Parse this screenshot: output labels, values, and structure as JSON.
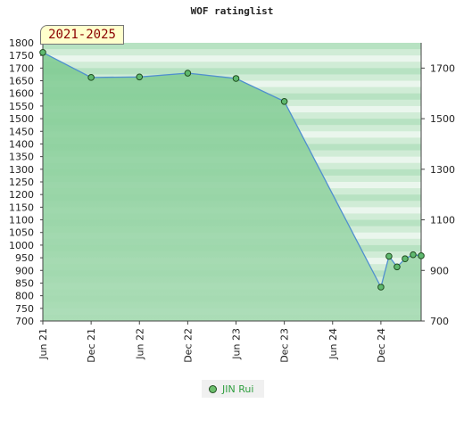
{
  "title": "WOF ratinglist",
  "badge": "2021-2025",
  "colors": {
    "band_dark": "#b7e2c2",
    "band_mid": "#d0ecd6",
    "band_light": "#eaf6ed",
    "fill_top": "#7fcb92",
    "fill_bottom": "#a7dbb3",
    "line": "#4f8fcf",
    "marker": "#5fb96f",
    "marker_stroke": "#1f4d1f"
  },
  "chart_data": {
    "type": "area",
    "title": "WOF ratinglist",
    "x_ticks": [
      "Jun 21",
      "Dec 21",
      "Jun 22",
      "Dec 22",
      "Jun 23",
      "Dec 23",
      "Jun 24",
      "Dec 24"
    ],
    "ylim": [
      700,
      1800
    ],
    "y_ticks_left": [
      1800,
      1750,
      1700,
      1650,
      1600,
      1550,
      1500,
      1450,
      1400,
      1350,
      1300,
      1250,
      1200,
      1150,
      1100,
      1050,
      1000,
      950,
      900,
      850,
      800,
      750,
      700
    ],
    "y_ticks_right": [
      1700,
      1500,
      1300,
      1100,
      900,
      700
    ],
    "grid": true,
    "legend_position": "bottom",
    "series": [
      {
        "name": "JIN Rui",
        "points": [
          {
            "x": "2021-06",
            "y": 1762
          },
          {
            "x": "2021-12",
            "y": 1663
          },
          {
            "x": "2022-06",
            "y": 1665
          },
          {
            "x": "2022-12",
            "y": 1680
          },
          {
            "x": "2023-06",
            "y": 1659
          },
          {
            "x": "2023-12",
            "y": 1568
          },
          {
            "x": "2024-12",
            "y": 834
          },
          {
            "x": "2025-01",
            "y": 956
          },
          {
            "x": "2025-02",
            "y": 914
          },
          {
            "x": "2025-03",
            "y": 946
          },
          {
            "x": "2025-04",
            "y": 962
          },
          {
            "x": "2025-05",
            "y": 958
          }
        ]
      }
    ]
  }
}
